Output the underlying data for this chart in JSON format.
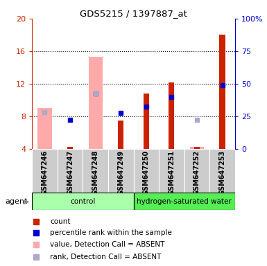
{
  "title": "GDS5215 / 1397887_at",
  "samples": [
    "GSM647246",
    "GSM647247",
    "GSM647248",
    "GSM647249",
    "GSM647250",
    "GSM647251",
    "GSM647252",
    "GSM647253"
  ],
  "ylim_left": [
    4,
    20
  ],
  "ylim_right": [
    0,
    100
  ],
  "yticks_left": [
    4,
    8,
    12,
    16,
    20
  ],
  "ytick_labels_left": [
    "4",
    "8",
    "12",
    "16",
    "20"
  ],
  "ytick_labels_right": [
    "0",
    "25",
    "50",
    "75",
    "100%"
  ],
  "red_bars": [
    null,
    4.3,
    null,
    7.5,
    10.8,
    12.2,
    4.3,
    18.0
  ],
  "blue_squares": [
    null,
    7.6,
    10.8,
    8.4,
    9.2,
    10.4,
    null,
    11.8
  ],
  "pink_bars": [
    9.0,
    null,
    15.3,
    null,
    null,
    null,
    4.3,
    null
  ],
  "lightblue_squares": [
    8.5,
    null,
    10.8,
    null,
    null,
    null,
    7.6,
    null
  ],
  "color_red": "#cc2200",
  "color_blue": "#0000cc",
  "color_pink": "#ffaaaa",
  "color_lightblue": "#aaaacc",
  "color_control_bg": "#aaffaa",
  "color_hsw_bg": "#55ee55",
  "group_label_control": "control",
  "group_label_hsw": "hydrogen-saturated water",
  "agent_label": "agent",
  "legend_items": [
    "count",
    "percentile rank within the sample",
    "value, Detection Call = ABSENT",
    "rank, Detection Call = ABSENT"
  ]
}
